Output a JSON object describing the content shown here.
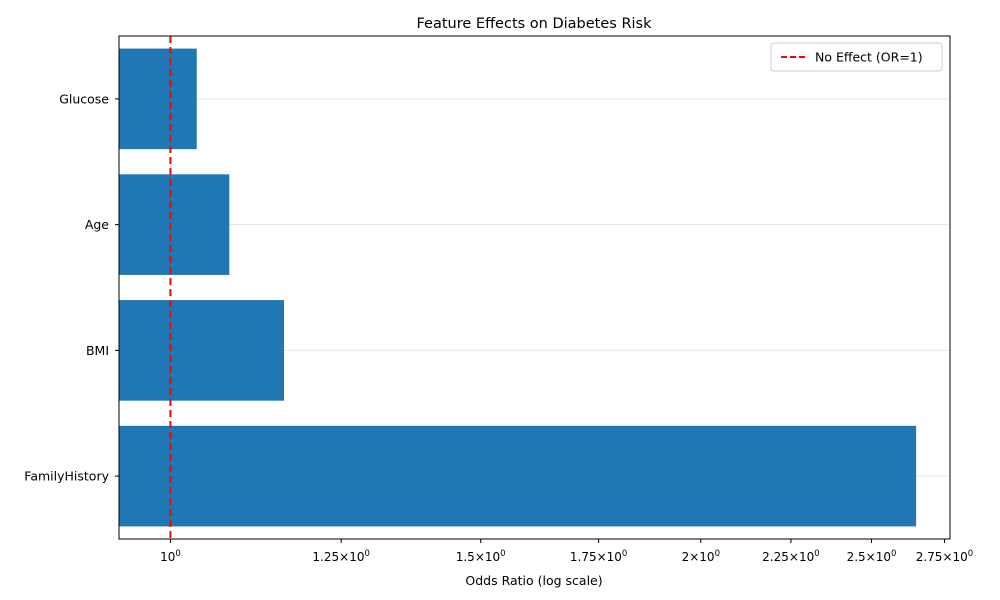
{
  "chart_data": {
    "type": "bar",
    "orientation": "horizontal",
    "title": "Feature Effects on Diabetes Risk",
    "xlabel": "Odds Ratio (log scale)",
    "ylabel": "",
    "x_scale": "log",
    "xlim": [
      0.935,
      2.77
    ],
    "categories": [
      "Glucose",
      "Age",
      "BMI",
      "FamilyHistory"
    ],
    "values": [
      1.035,
      1.08,
      1.16,
      2.65
    ],
    "bar_color": "#1f77b4",
    "x_ticks": [
      {
        "value": 1.0,
        "mantissa": "10",
        "exponent": "0",
        "prefix": ""
      },
      {
        "value": 1.25,
        "mantissa": "10",
        "exponent": "0",
        "prefix": "1.25×"
      },
      {
        "value": 1.5,
        "mantissa": "10",
        "exponent": "0",
        "prefix": "1.5×"
      },
      {
        "value": 1.75,
        "mantissa": "10",
        "exponent": "0",
        "prefix": "1.75×"
      },
      {
        "value": 2.0,
        "mantissa": "10",
        "exponent": "0",
        "prefix": "2×"
      },
      {
        "value": 2.25,
        "mantissa": "10",
        "exponent": "0",
        "prefix": "2.25×"
      },
      {
        "value": 2.5,
        "mantissa": "10",
        "exponent": "0",
        "prefix": "2.5×"
      },
      {
        "value": 2.75,
        "mantissa": "10",
        "exponent": "0",
        "prefix": "2.75×"
      }
    ],
    "reference_line": {
      "value": 1.0,
      "label": "No Effect (OR=1)",
      "color": "#ff0000",
      "style": "dashed"
    },
    "grid": {
      "x": false,
      "y": true
    },
    "legend": {
      "position": "top-right",
      "entries": [
        "No Effect (OR=1)"
      ]
    }
  }
}
